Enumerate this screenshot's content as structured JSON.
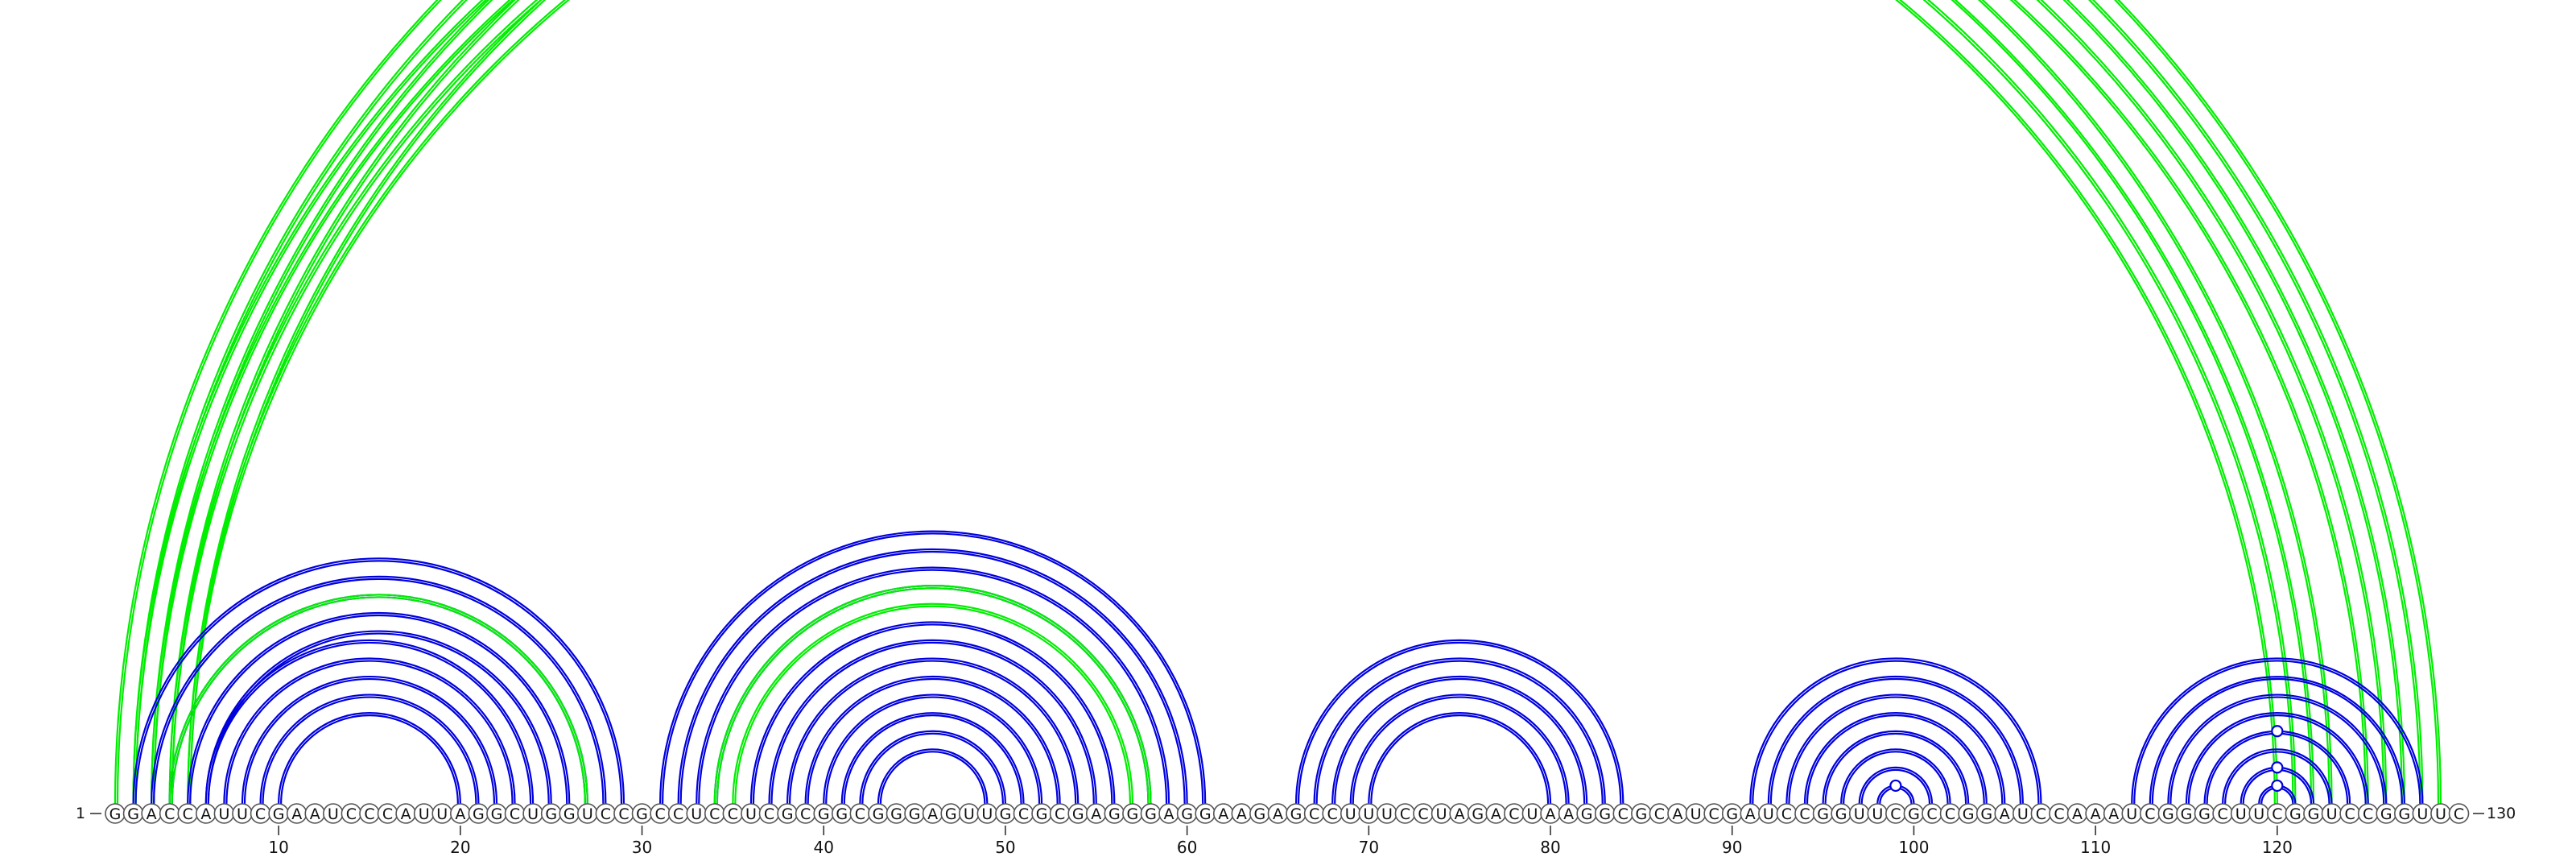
{
  "sequence": "GGACCAUUCGAAUCCCAUUAGGCUGGUCCGCCUCCUCGCGGCGGGAGUUGCGCGAGGGAGGAAGAGCCUUUCCUAGACUAAGGCGCAUCGAUCCGGUUCGCCGGAUCCAAAUCGGGCUUCGGUCCGGUUC",
  "start_label": "1",
  "end_label": "130",
  "ticks": [
    10,
    20,
    30,
    40,
    50,
    60,
    70,
    80,
    90,
    100,
    110,
    120
  ],
  "colors": {
    "paired": "#0000dd",
    "alternate": "#00ee00"
  },
  "pairs": [
    {
      "color": "alternate",
      "pairs": [
        [
          1,
          129
        ],
        [
          2,
          128
        ],
        [
          3,
          127
        ],
        [
          4,
          126
        ],
        [
          5,
          125
        ]
      ]
    },
    {
      "color": "alternate",
      "pairs": [
        [
          2,
          123
        ],
        [
          3,
          122
        ],
        [
          4,
          121
        ],
        [
          5,
          120
        ]
      ]
    },
    {
      "color": "paired",
      "pairs": [
        [
          2,
          29
        ],
        [
          3,
          28
        ],
        [
          4,
          27
        ],
        [
          5,
          26
        ],
        [
          6,
          25
        ]
      ]
    },
    {
      "color": "alternate",
      "pairs": [
        [
          4,
          27
        ]
      ]
    },
    {
      "color": "paired",
      "pairs": [
        [
          6,
          24
        ],
        [
          7,
          23
        ],
        [
          8,
          22
        ],
        [
          9,
          21
        ],
        [
          10,
          20
        ]
      ]
    },
    {
      "color": "paired",
      "pairs": [
        [
          31,
          61
        ],
        [
          32,
          60
        ],
        [
          33,
          59
        ],
        [
          34,
          58
        ]
      ]
    },
    {
      "color": "alternate",
      "pairs": [
        [
          34,
          58
        ],
        [
          35,
          57
        ]
      ]
    },
    {
      "color": "paired",
      "pairs": [
        [
          36,
          56
        ],
        [
          37,
          55
        ],
        [
          38,
          54
        ],
        [
          39,
          53
        ],
        [
          40,
          52
        ],
        [
          41,
          51
        ],
        [
          42,
          50
        ],
        [
          43,
          49
        ]
      ]
    },
    {
      "color": "paired",
      "pairs": [
        [
          66,
          84
        ],
        [
          67,
          83
        ],
        [
          68,
          82
        ],
        [
          69,
          81
        ],
        [
          70,
          80
        ]
      ]
    },
    {
      "color": "paired",
      "pairs": [
        [
          91,
          107
        ],
        [
          92,
          106
        ],
        [
          93,
          105
        ],
        [
          94,
          104
        ],
        [
          95,
          103
        ],
        [
          96,
          102
        ],
        [
          97,
          101
        ],
        [
          98,
          100
        ]
      ]
    },
    {
      "color": "paired",
      "pairs": [
        [
          112,
          128
        ],
        [
          113,
          127
        ],
        [
          114,
          126
        ],
        [
          115,
          125
        ],
        [
          116,
          124
        ],
        [
          117,
          123
        ],
        [
          118,
          122
        ],
        [
          119,
          121
        ]
      ]
    }
  ],
  "markers": [
    {
      "color": "alternate",
      "pair": [
        1,
        129
      ]
    },
    {
      "color": "paired",
      "pair": [
        98,
        100
      ]
    },
    {
      "color": "paired",
      "pair": [
        116,
        124
      ]
    },
    {
      "color": "paired",
      "pair": [
        118,
        122
      ]
    },
    {
      "color": "paired",
      "pair": [
        119,
        121
      ]
    }
  ]
}
